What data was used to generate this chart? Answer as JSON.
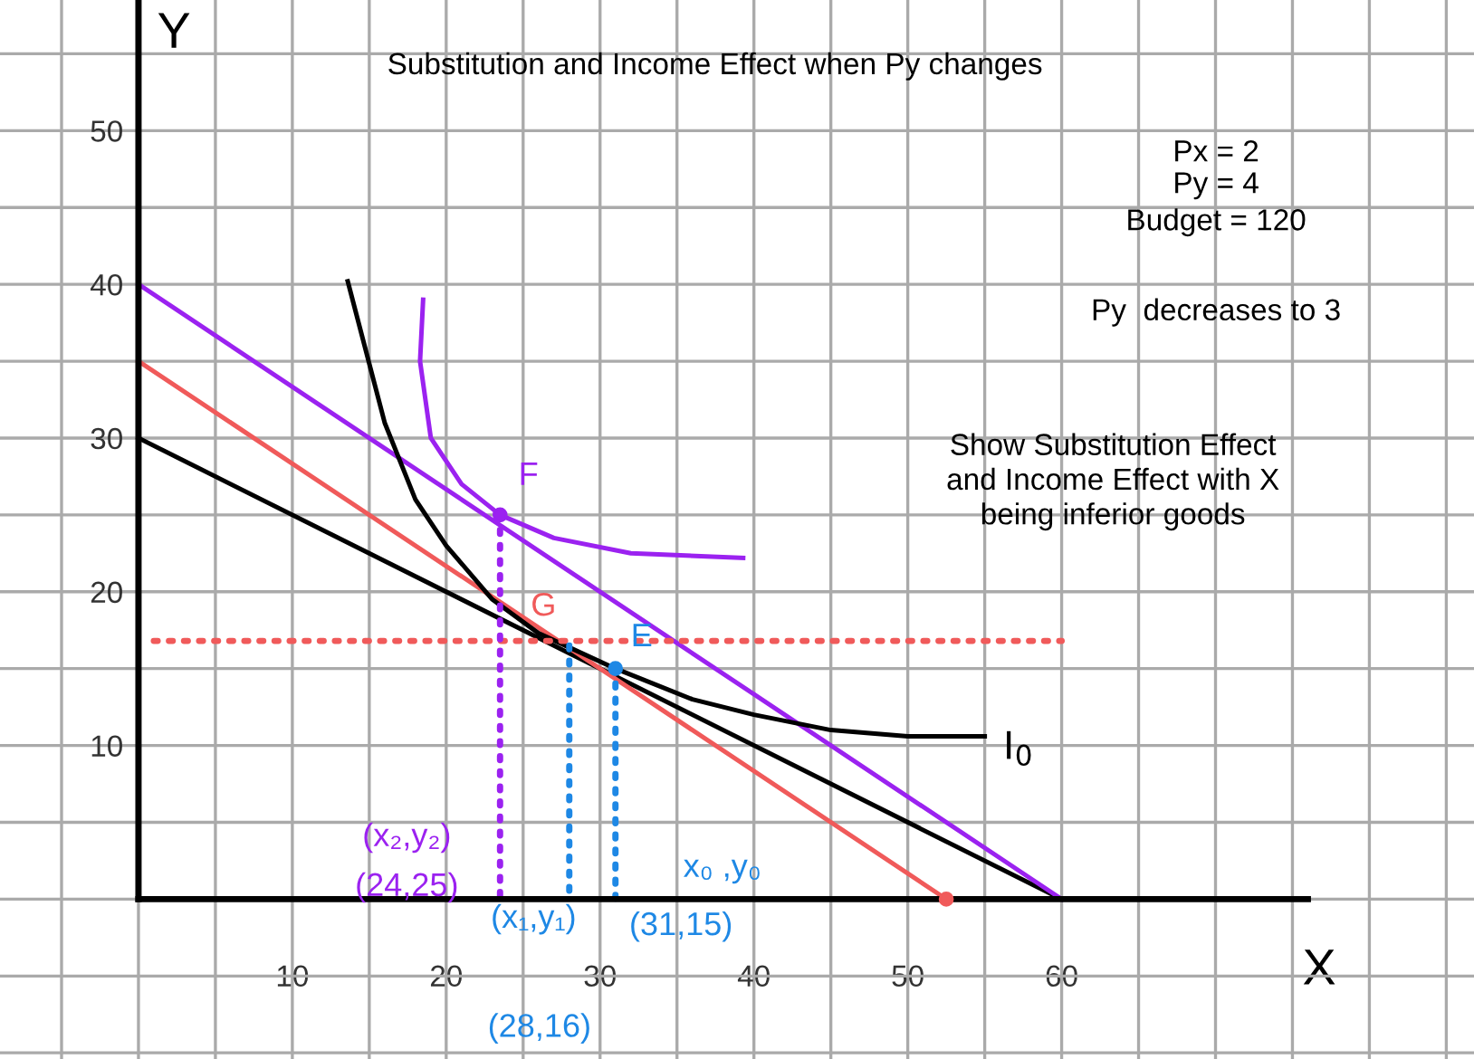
{
  "chart_data": {
    "type": "line",
    "title": "Substitution and Income Effect when Py changes",
    "xlabel": "X",
    "ylabel": "Y",
    "xlim": [
      -9,
      86.8
    ],
    "ylim": [
      -10.4,
      58.5
    ],
    "xticks": [
      {
        "value": -5,
        "label": null
      },
      {
        "value": 0,
        "label": null
      },
      {
        "value": 5,
        "label": null
      },
      10,
      {
        "value": 15,
        "label": null
      },
      20,
      {
        "value": 25,
        "label": null
      },
      30,
      {
        "value": 35,
        "label": null
      },
      40,
      {
        "value": 45,
        "label": null
      },
      50,
      {
        "value": 55,
        "label": null
      },
      60,
      {
        "value": 65,
        "label": null
      },
      {
        "value": 70,
        "label": null
      },
      {
        "value": 75,
        "label": null
      },
      {
        "value": 80,
        "label": null
      },
      {
        "value": 85,
        "label": null
      }
    ],
    "yticks": [
      {
        "value": -10,
        "label": null
      },
      {
        "value": -5,
        "label": null
      },
      {
        "value": 0,
        "label": null
      },
      {
        "value": 5,
        "label": null
      },
      10,
      {
        "value": 15,
        "label": null
      },
      20,
      {
        "value": 25,
        "label": null
      },
      30,
      {
        "value": 35,
        "label": null
      },
      40,
      {
        "value": 45,
        "label": null
      },
      50,
      {
        "value": 55,
        "label": null
      }
    ],
    "grid": true,
    "legend": false,
    "series": [
      {
        "color": "#000000",
        "x": [
          0,
          60
        ],
        "values": [
          30,
          0
        ]
      },
      {
        "color": "#9b22f0",
        "x": [
          0,
          60
        ],
        "values": [
          40,
          0
        ]
      },
      {
        "color": "#f05a5a",
        "x": [
          0,
          52.5
        ],
        "values": [
          35,
          0
        ]
      },
      {
        "color": "#000000",
        "x": [
          13.6,
          16,
          18,
          20,
          23,
          26,
          31,
          36,
          40,
          45,
          50,
          55
        ],
        "values": [
          40.2,
          31,
          26,
          23,
          19.5,
          17.3,
          15,
          13,
          12,
          11,
          10.6,
          10.6
        ]
      },
      {
        "color": "#9b22f0",
        "x": [
          18.5,
          18.3,
          19,
          21,
          23.5,
          27,
          32,
          39.3
        ],
        "values": [
          39,
          35,
          30,
          27,
          25,
          23.5,
          22.5,
          22.2
        ]
      },
      {
        "type": "line",
        "color": "#f05a5a",
        "line_style": "dotted",
        "x": [
          1,
          60
        ],
        "values": [
          16.8,
          16.8
        ]
      },
      {
        "type": "line",
        "color": "#1e88e5",
        "line_style": "dotted",
        "x": [
          31,
          31
        ],
        "values": [
          15,
          0
        ]
      },
      {
        "type": "line",
        "color": "#1e88e5",
        "line_style": "dotted",
        "x": [
          28,
          28
        ],
        "values": [
          16.5,
          0
        ]
      },
      {
        "type": "line",
        "color": "#9b22f0",
        "line_style": "dotted",
        "x": [
          23.5,
          23.5
        ],
        "values": [
          25,
          0
        ]
      },
      {
        "type": "scatter",
        "color": "#9b22f0",
        "x": [
          23.5
        ],
        "values": [
          25
        ]
      },
      {
        "type": "scatter",
        "color": "#1e88e5",
        "x": [
          31
        ],
        "values": [
          15
        ]
      },
      {
        "type": "scatter",
        "color": "#f05a5a",
        "x": [
          52.5
        ],
        "values": [
          0
        ]
      }
    ],
    "annotations": [
      {
        "text": "F",
        "x": 23.5,
        "y": 25
      },
      {
        "text": "G",
        "x": 28,
        "y": 16.5
      },
      {
        "text": "E",
        "x": 31,
        "y": 15
      },
      {
        "text": "I$_{0}$",
        "x": 55,
        "y": 10.6
      },
      "(x₂,y₂)",
      "(24,25)",
      "(x₁,y₁)",
      "(28,16)",
      "x₀ ,y₀",
      "(31,15)",
      "Px = 2",
      "Py = 4",
      "Budget = 120",
      "Py  decreases to 3",
      "Show Substitution Effect\nand Income Effect with X\nbeing inferior goods"
    ]
  }
}
